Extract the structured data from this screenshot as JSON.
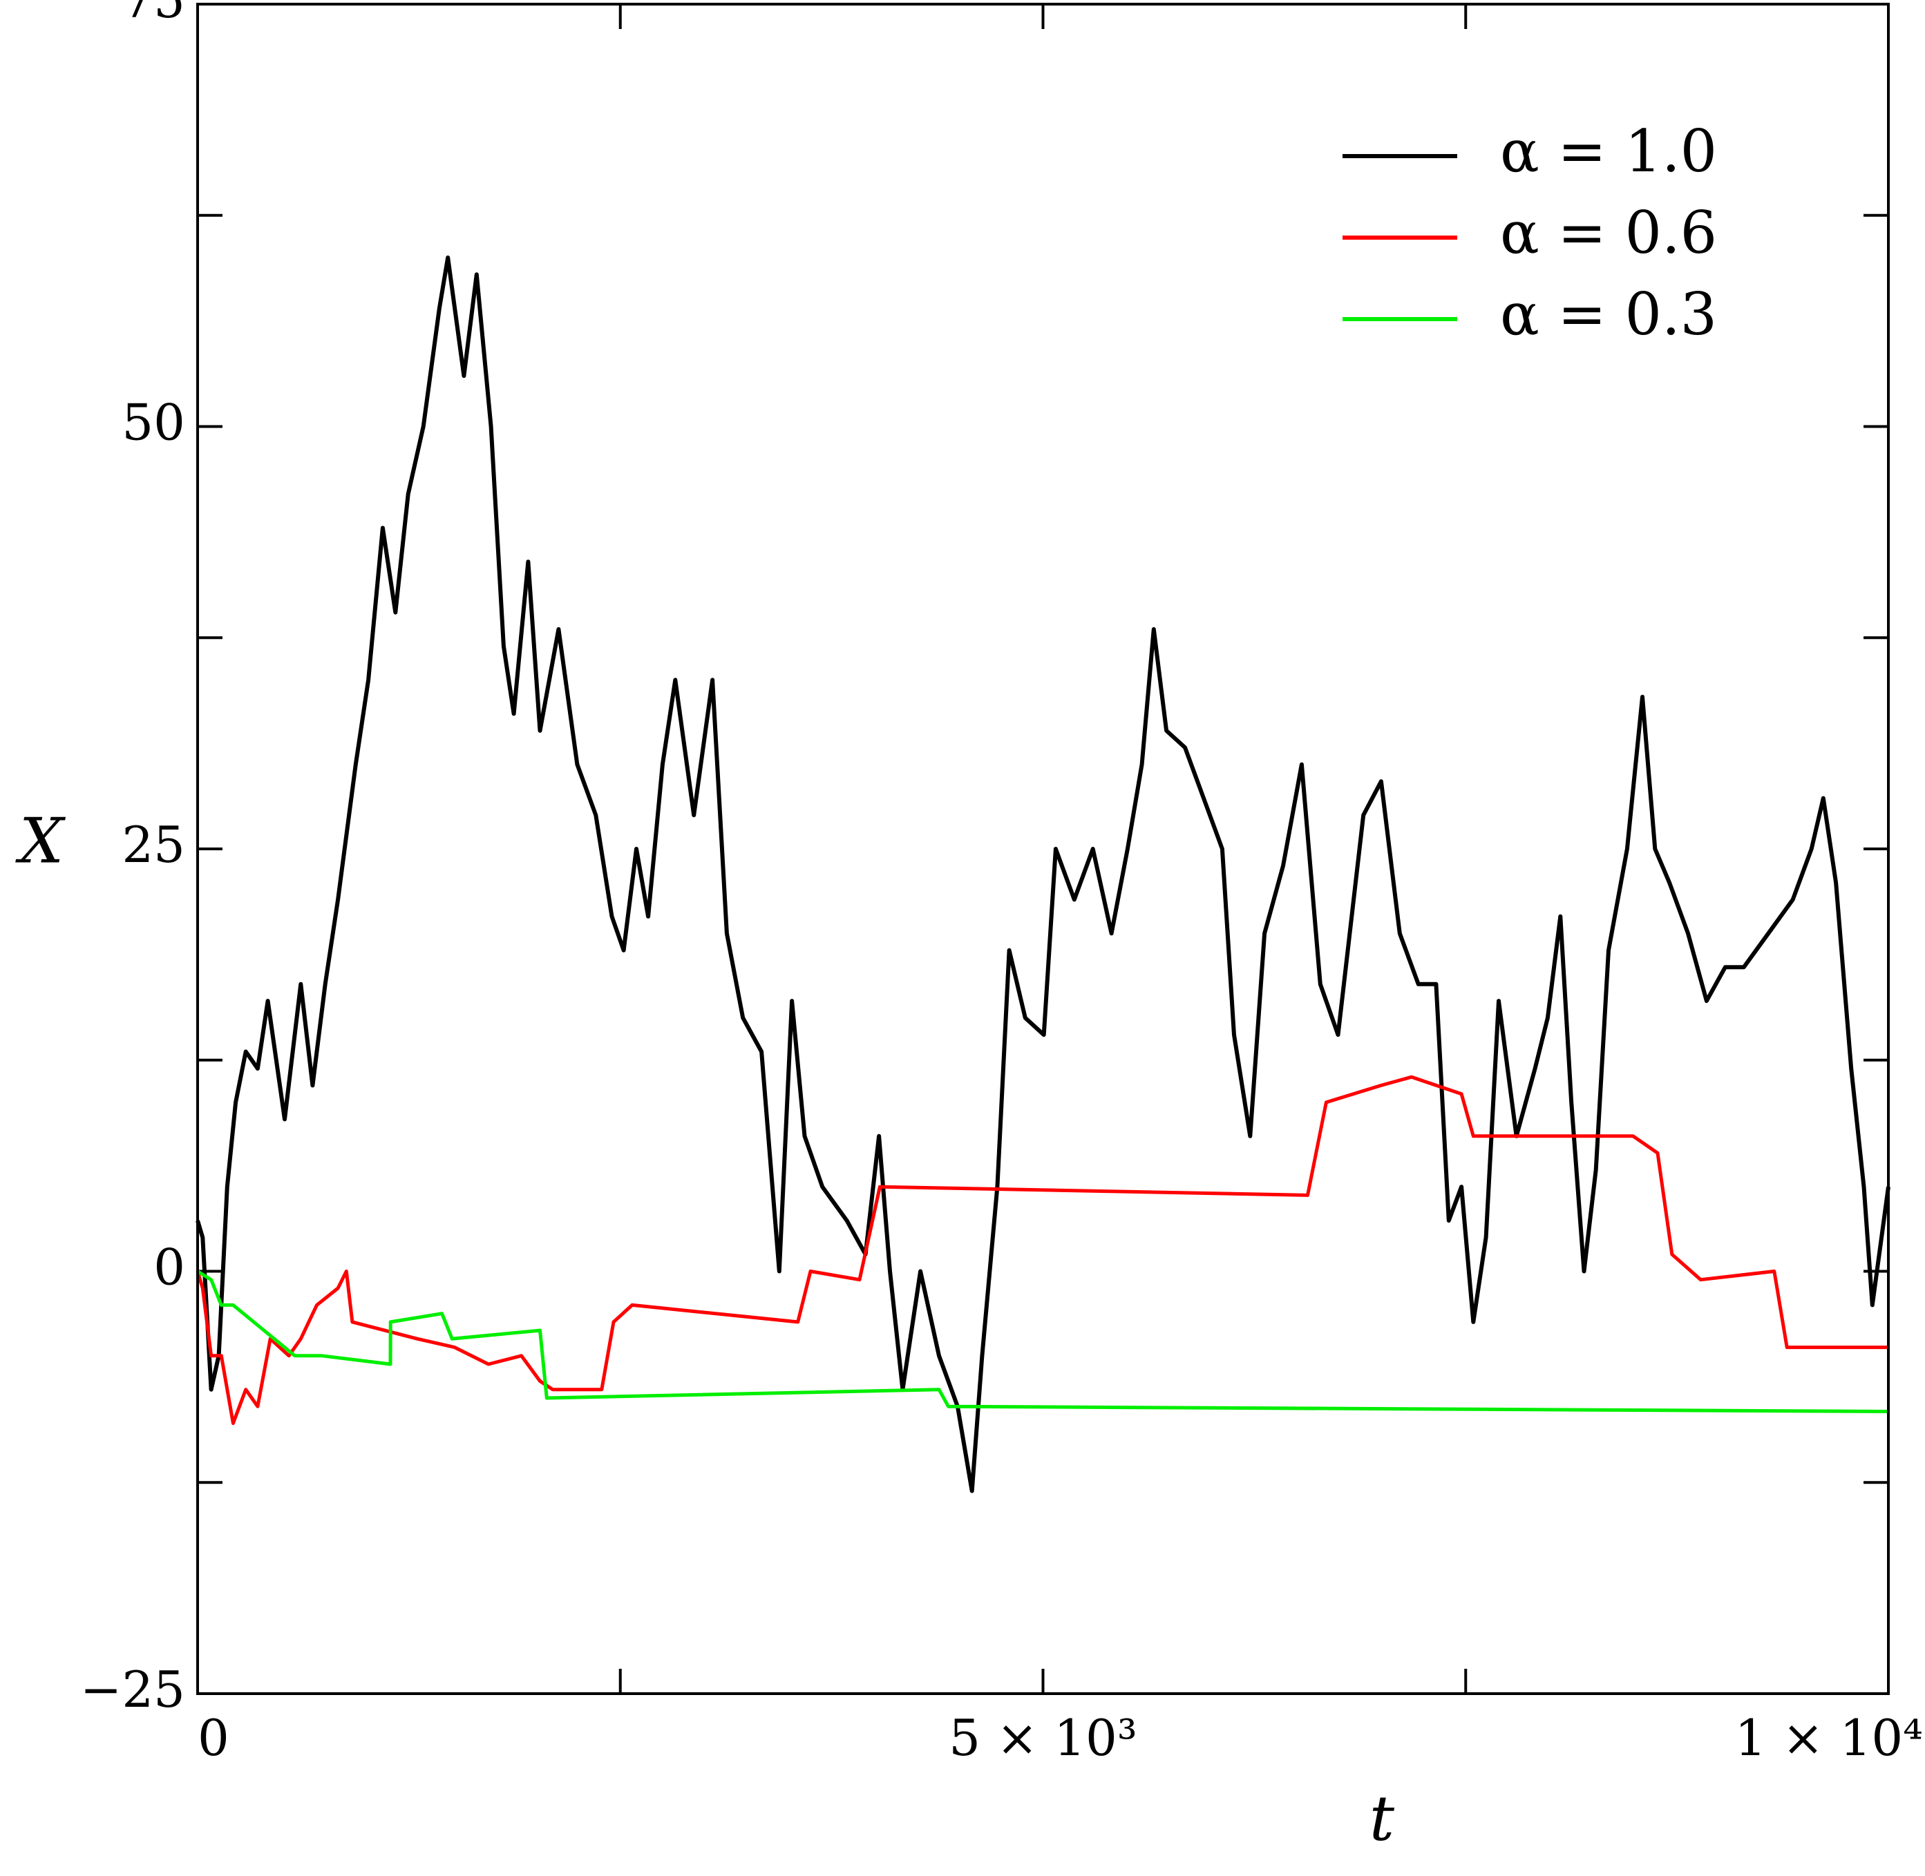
{
  "chart_data": {
    "type": "line",
    "xlabel": "t",
    "ylabel": "X",
    "xlim": [
      0,
      10000
    ],
    "ylim": [
      -25,
      75
    ],
    "xticks": [
      0,
      {
        "value": 5000,
        "label": "5 × 10³"
      },
      {
        "value": 10000,
        "label": "1 × 10⁴"
      }
    ],
    "yticks": [
      {
        "value": -25,
        "label": "−25"
      },
      0,
      25,
      50,
      75
    ],
    "xminor_ticks": [
      2500,
      7500
    ],
    "yminor_ticks": [
      -12.5,
      12.5,
      37.5,
      62.5
    ],
    "legend": "upper right",
    "series": [
      {
        "name": "α = 1.0",
        "color": "#000000",
        "x": [
          0,
          30,
          80,
          125,
          175,
          225,
          285,
          355,
          415,
          515,
          610,
          680,
          755,
          830,
          935,
          1010,
          1095,
          1170,
          1245,
          1335,
          1430,
          1480,
          1575,
          1650,
          1735,
          1810,
          1870,
          1955,
          2025,
          2135,
          2245,
          2355,
          2450,
          2520,
          2595,
          2665,
          2750,
          2825,
          2935,
          3045,
          3130,
          3225,
          3335,
          3440,
          3515,
          3590,
          3695,
          3840,
          3950,
          4030,
          4095,
          4170,
          4275,
          4385,
          4495,
          4580,
          4640,
          4730,
          4800,
          4895,
          5005,
          5075,
          5185,
          5295,
          5405,
          5500,
          5585,
          5655,
          5730,
          5840,
          5950,
          6060,
          6130,
          6225,
          6310,
          6420,
          6530,
          6640,
          6745,
          6895,
          7000,
          7110,
          7220,
          7325,
          7400,
          7475,
          7545,
          7620,
          7695,
          7800,
          7910,
          7985,
          8060,
          8125,
          8200,
          8270,
          8345,
          8455,
          8545,
          8620,
          8705,
          8815,
          8925,
          9035,
          9145,
          9290,
          9435,
          9545,
          9615,
          9690,
          9780,
          9855,
          9905,
          10000
        ],
        "values": [
          3,
          2,
          -7,
          -5,
          5,
          10,
          13,
          12,
          16,
          9,
          17,
          11,
          17,
          22,
          30,
          35,
          44,
          39,
          46,
          50,
          57,
          60,
          53,
          59,
          50,
          37,
          33,
          42,
          32,
          38,
          30,
          27,
          21,
          19,
          25,
          21,
          30,
          35,
          27,
          35,
          20,
          15,
          13,
          0,
          16,
          8,
          5,
          3,
          1,
          8,
          0,
          -7,
          0,
          -5,
          -8,
          -13,
          -5,
          5,
          19,
          15,
          14,
          25,
          22,
          25,
          20,
          25,
          30,
          38,
          32,
          31,
          28,
          25,
          14,
          8,
          20,
          24,
          30,
          17,
          14,
          27,
          29,
          20,
          17,
          17,
          3,
          5,
          -3,
          2,
          16,
          8,
          12,
          15,
          21,
          10,
          0,
          6,
          19,
          25,
          34,
          25,
          23,
          20,
          16,
          18,
          18,
          20,
          22,
          25,
          28,
          23,
          12,
          5,
          -2,
          5
        ]
      },
      {
        "name": "α = 0.6",
        "color": "#ff0000",
        "x": [
          0,
          30,
          80,
          140,
          210,
          285,
          355,
          430,
          540,
          610,
          705,
          830,
          880,
          915,
          1300,
          1520,
          1720,
          1915,
          2025,
          2100,
          2390,
          2460,
          2570,
          3550,
          3625,
          3915,
          4035,
          6565,
          6675,
          7000,
          7180,
          7475,
          7545,
          8490,
          8635,
          8720,
          8890,
          9325,
          9400,
          10000
        ],
        "values": [
          0,
          -1,
          -5,
          -5,
          -9,
          -7,
          -8,
          -4,
          -5,
          -4,
          -2,
          -1,
          0,
          -3,
          -4,
          -4.5,
          -5.5,
          -5,
          -6.5,
          -7,
          -7,
          -3,
          -2,
          -3,
          0,
          -0.5,
          5,
          4.5,
          10,
          11,
          11.5,
          10.5,
          8,
          8,
          7,
          1,
          -0.5,
          0,
          -4.5,
          -4.5
        ]
      },
      {
        "name": "α = 0.3",
        "color": "#00ee00",
        "x": [
          0,
          80,
          140,
          210,
          575,
          735,
          1140,
          1141,
          1445,
          1505,
          2025,
          2065,
          4385,
          4440,
          10000
        ],
        "values": [
          0,
          -0.5,
          -2,
          -2,
          -5,
          -5,
          -5.5,
          -3,
          -2.5,
          -4,
          -3.5,
          -7.5,
          -7,
          -8,
          -8.3
        ]
      }
    ]
  }
}
